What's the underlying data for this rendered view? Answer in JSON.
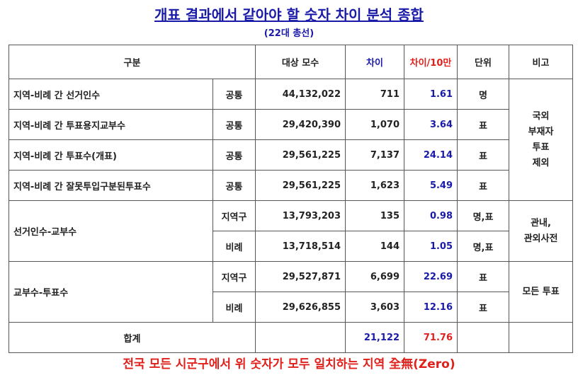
{
  "header": {
    "title": "개표 결과에서 같아야 할 숫자 차이 분석 종합",
    "subtitle": "(22대 총선)"
  },
  "table": {
    "columns": [
      "구분",
      "대상 모수",
      "차이",
      "차이/10만",
      "단위",
      "비고"
    ],
    "sections": [
      {
        "label": "지역-비례 간 선거인수",
        "rows": [
          [
            "공통",
            "44,132,022",
            "711",
            "1.61",
            "명"
          ]
        ]
      },
      {
        "label": "지역-비례 간 투표용지교부수",
        "rows": [
          [
            "공통",
            "29,420,390",
            "1,070",
            "3.64",
            "표"
          ]
        ]
      },
      {
        "label": "지역-비례 간 투표수(개표)",
        "rows": [
          [
            "공통",
            "29,561,225",
            "7,137",
            "24.14",
            "표"
          ]
        ]
      },
      {
        "label": "지역-비례 간 잘못투입구분된투표수",
        "rows": [
          [
            "공통",
            "29,561,225",
            "1,623",
            "5.49",
            "표"
          ]
        ]
      },
      {
        "label": "선거인수-교부수",
        "rows": [
          [
            "지역구",
            "13,793,203",
            "135",
            "0.98",
            "명,표"
          ],
          [
            "비례",
            "13,718,514",
            "144",
            "1.05",
            "명,표"
          ]
        ]
      },
      {
        "label": "교부수-투표수",
        "rows": [
          [
            "지역구",
            "29,527,871",
            "6,699",
            "22.69",
            "표"
          ],
          [
            "비례",
            "29,626,855",
            "3,603",
            "12.16",
            "표"
          ]
        ]
      }
    ],
    "remarks": [
      [
        "국외",
        "부재자",
        "투표",
        "제외"
      ],
      [
        "관내,",
        "관외사전"
      ],
      [
        "모든 투표"
      ]
    ],
    "total": {
      "label": "합계",
      "diff": "21,122",
      "per_100k": "71.76"
    }
  },
  "footer": "전국 모든 시군구에서 위 숫자가 모두 일치하는 지역 全無(Zero)"
}
